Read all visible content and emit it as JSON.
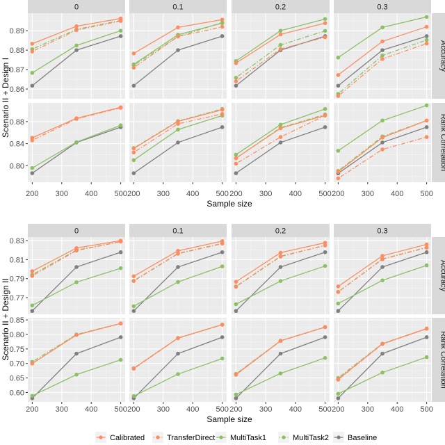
{
  "chart_data": {
    "type": "line",
    "title": "",
    "xlabel": "Sample size",
    "x": [
      200,
      350,
      500
    ],
    "x_ticks": [
      200,
      300,
      400,
      500
    ],
    "facet_columns": [
      "0",
      "0.1",
      "0.2",
      "0.3"
    ],
    "facet_rows": [
      "Accuracy",
      "Rank Correlation"
    ],
    "grid": true,
    "legend_position": "bottom",
    "legend": [
      {
        "name": "Calibrated",
        "color": "#FC8D62",
        "linetype": "solid"
      },
      {
        "name": "TransferDirect",
        "color": "#FC8D62",
        "linetype": "dotdash"
      },
      {
        "name": "MultiTask1",
        "color": "#8CC065",
        "linetype": "solid"
      },
      {
        "name": "MultiTask2",
        "color": "#8CC065",
        "linetype": "dotdash"
      },
      {
        "name": "Baseline",
        "color": "#7F7F7F",
        "linetype": "solid"
      }
    ],
    "blocks": [
      {
        "ylabel": "Scenario II + Design I",
        "rows": [
          {
            "metric": "Accuracy",
            "ylim": [
              0.855,
              0.899
            ],
            "y_ticks": [
              0.86,
              0.87,
              0.88,
              0.89
            ],
            "y_tick_labels": [
              "0.86",
              "0.87",
              "0.88",
              "0.89"
            ],
            "panels": [
              {
                "facet": "0",
                "series": {
                  "Calibrated": [
                    0.8833,
                    0.8923,
                    0.8963
                  ],
                  "TransferDirect": [
                    0.8793,
                    0.8903,
                    0.895
                  ],
                  "MultiTask1": [
                    0.8683,
                    0.8824,
                    0.89
                  ],
                  "MultiTask2": [
                    0.8805,
                    0.8907,
                    0.8953
                  ],
                  "Baseline": [
                    0.8617,
                    0.88,
                    0.8872
                  ]
                }
              },
              {
                "facet": "0.1",
                "series": {
                  "Calibrated": [
                    0.8783,
                    0.8917,
                    0.8957
                  ],
                  "TransferDirect": [
                    0.871,
                    0.887,
                    0.892
                  ],
                  "MultiTask1": [
                    0.8727,
                    0.8879,
                    0.8939
                  ],
                  "MultiTask2": [
                    0.8722,
                    0.887,
                    0.8942
                  ],
                  "Baseline": [
                    0.8617,
                    0.88,
                    0.8872
                  ]
                }
              },
              {
                "facet": "0.2",
                "series": {
                  "Calibrated": [
                    0.8733,
                    0.8881,
                    0.8939
                  ],
                  "TransferDirect": [
                    0.864,
                    0.8806,
                    0.8866
                  ],
                  "MultiTask1": [
                    0.8744,
                    0.89,
                    0.896
                  ],
                  "MultiTask2": [
                    0.8658,
                    0.8827,
                    0.8899
                  ],
                  "Baseline": [
                    0.8617,
                    0.88,
                    0.8872
                  ]
                }
              },
              {
                "facet": "0.3",
                "series": {
                  "Calibrated": [
                    0.8672,
                    0.8845,
                    0.892
                  ],
                  "TransferDirect": [
                    0.8564,
                    0.8755,
                    0.8834
                  ],
                  "MultiTask1": [
                    0.8762,
                    0.8917,
                    0.8971
                  ],
                  "MultiTask2": [
                    0.8575,
                    0.8773,
                    0.8852
                  ],
                  "Baseline": [
                    0.8617,
                    0.88,
                    0.8872
                  ]
                }
              }
            ]
          },
          {
            "metric": "Rank Correlation",
            "ylim": [
              0.77,
              0.914
            ],
            "y_ticks": [
              0.8,
              0.84,
              0.88
            ],
            "y_tick_labels": [
              "0.80",
              "0.84",
              "0.88"
            ],
            "panels": [
              {
                "facet": "0",
                "series": {
                  "Calibrated": [
                    0.8506,
                    0.8861,
                    0.906
                  ],
                  "TransferDirect": [
                    0.846,
                    0.885,
                    0.905
                  ],
                  "MultiTask1": [
                    0.7957,
                    0.8427,
                    0.8733
                  ],
                  "MultiTask2": [
                    0.8506,
                    0.886,
                    0.906
                  ],
                  "Baseline": [
                    0.7863,
                    0.8421,
                    0.87
                  ]
                }
              },
              {
                "facet": "0.1",
                "series": {
                  "Calibrated": [
                    0.8312,
                    0.8804,
                    0.9015
                  ],
                  "TransferDirect": [
                    0.824,
                    0.876,
                    0.894
                  ],
                  "MultiTask1": [
                    0.81,
                    0.8655,
                    0.891
                  ],
                  "MultiTask2": [
                    0.832,
                    0.881,
                    0.903
                  ],
                  "Baseline": [
                    0.7863,
                    0.8421,
                    0.87
                  ]
                }
              },
              {
                "facet": "0.2",
                "series": {
                  "Calibrated": [
                    0.8135,
                    0.868,
                    0.8912
                  ],
                  "TransferDirect": [
                    0.8036,
                    0.852,
                    0.891
                  ],
                  "MultiTask1": [
                    0.82,
                    0.8745,
                    0.903
                  ],
                  "MultiTask2": [
                    0.8135,
                    0.869,
                    0.893
                  ],
                  "Baseline": [
                    0.7863,
                    0.8421,
                    0.87
                  ]
                }
              },
              {
                "facet": "0.3",
                "series": {
                  "Calibrated": [
                    0.789,
                    0.851,
                    0.882
                  ],
                  "TransferDirect": [
                    0.777,
                    0.8295,
                    0.852
                  ],
                  "MultiTask1": [
                    0.827,
                    0.882,
                    0.9095
                  ],
                  "MultiTask2": [
                    0.7905,
                    0.853,
                    0.882
                  ],
                  "Baseline": [
                    0.786,
                    0.8421,
                    0.87
                  ]
                }
              }
            ]
          }
        ]
      },
      {
        "ylabel": "Scenario II + Design II",
        "rows": [
          {
            "metric": "Accuracy",
            "ylim": [
              0.7525,
              0.8337
            ],
            "y_ticks": [
              0.77,
              0.79,
              0.81,
              0.83
            ],
            "y_tick_labels": [
              "0.77",
              "0.79",
              "0.81",
              "0.83"
            ],
            "panels": [
              {
                "facet": "0",
                "series": {
                  "Calibrated": [
                    0.7978,
                    0.8222,
                    0.83
                  ],
                  "TransferDirect": [
                    0.7929,
                    0.8195,
                    0.8289
                  ],
                  "MultiTask1": [
                    0.7618,
                    0.7862,
                    0.801
                  ],
                  "MultiTask2": [
                    0.7942,
                    0.82,
                    0.8289
                  ],
                  "Baseline": [
                    0.756,
                    0.8022,
                    0.8178
                  ]
                }
              },
              {
                "facet": "0.1",
                "series": {
                  "Calibrated": [
                    0.7925,
                    0.8193,
                    0.8295
                  ],
                  "TransferDirect": [
                    0.7875,
                    0.8162,
                    0.8268
                  ],
                  "MultiTask1": [
                    0.761,
                    0.7865,
                    0.8029
                  ],
                  "MultiTask2": [
                    0.7878,
                    0.8165,
                    0.8271
                  ],
                  "Baseline": [
                    0.756,
                    0.8022,
                    0.8178
                  ]
                }
              },
              {
                "facet": "0.2",
                "series": {
                  "Calibrated": [
                    0.7867,
                    0.8173,
                    0.8278
                  ],
                  "TransferDirect": [
                    0.7815,
                    0.8132,
                    0.8249
                  ],
                  "MultiTask1": [
                    0.7631,
                    0.7875,
                    0.8033
                  ],
                  "MultiTask2": [
                    0.7818,
                    0.8135,
                    0.8251
                  ],
                  "Baseline": [
                    0.756,
                    0.8022,
                    0.8178
                  ]
                }
              },
              {
                "facet": "0.3",
                "series": {
                  "Calibrated": [
                    0.7818,
                    0.814,
                    0.826
                  ],
                  "TransferDirect": [
                    0.7759,
                    0.8104,
                    0.8226
                  ],
                  "MultiTask1": [
                    0.7638,
                    0.7882,
                    0.804
                  ],
                  "MultiTask2": [
                    0.7762,
                    0.8107,
                    0.8229
                  ],
                  "Baseline": [
                    0.756,
                    0.8022,
                    0.8178
                  ]
                }
              }
            ]
          },
          {
            "metric": "Rank Correlation",
            "ylim": [
              0.5675,
              0.8575
            ],
            "y_ticks": [
              0.6,
              0.65,
              0.7,
              0.75,
              0.8,
              0.85
            ],
            "y_tick_labels": [
              "0.60",
              "0.65",
              "0.70",
              "0.75",
              "0.80",
              "0.85"
            ],
            "panels": [
              {
                "facet": "0",
                "series": {
                  "Calibrated": [
                    0.6996,
                    0.7983,
                    0.8377
                  ],
                  "TransferDirect": [
                    0.7,
                    0.798,
                    0.838
                  ],
                  "MultiTask1": [
                    0.5884,
                    0.6616,
                    0.7125
                  ],
                  "MultiTask2": [
                    0.7056,
                    0.8,
                    0.838
                  ],
                  "Baseline": [
                    0.58,
                    0.7338,
                    0.7905
                  ]
                }
              },
              {
                "facet": "0.1",
                "series": {
                  "Calibrated": [
                    0.6829,
                    0.7875,
                    0.8338
                  ],
                  "TransferDirect": [
                    0.682,
                    0.787,
                    0.8335
                  ],
                  "MultiTask1": [
                    0.5875,
                    0.6632,
                    0.7171
                  ],
                  "MultiTask2": [
                    0.6835,
                    0.7878,
                    0.834
                  ],
                  "Baseline": [
                    0.58,
                    0.7338,
                    0.7905
                  ]
                }
              },
              {
                "facet": "0.2",
                "series": {
                  "Calibrated": [
                    0.662,
                    0.7781,
                    0.8253
                  ],
                  "TransferDirect": [
                    0.661,
                    0.7775,
                    0.825
                  ],
                  "MultiTask1": [
                    0.593,
                    0.6657,
                    0.719
                  ],
                  "MultiTask2": [
                    0.664,
                    0.7785,
                    0.8255
                  ],
                  "Baseline": [
                    0.58,
                    0.7338,
                    0.7905
                  ]
                }
              },
              {
                "facet": "0.3",
                "series": {
                  "Calibrated": [
                    0.6457,
                    0.7677,
                    0.8201
                  ],
                  "TransferDirect": [
                    0.644,
                    0.767,
                    0.8195
                  ],
                  "MultiTask1": [
                    0.5954,
                    0.6686,
                    0.7218
                  ],
                  "MultiTask2": [
                    0.6503,
                    0.7685,
                    0.8205
                  ],
                  "Baseline": [
                    0.58,
                    0.7338,
                    0.7905
                  ]
                }
              }
            ]
          }
        ]
      }
    ]
  }
}
